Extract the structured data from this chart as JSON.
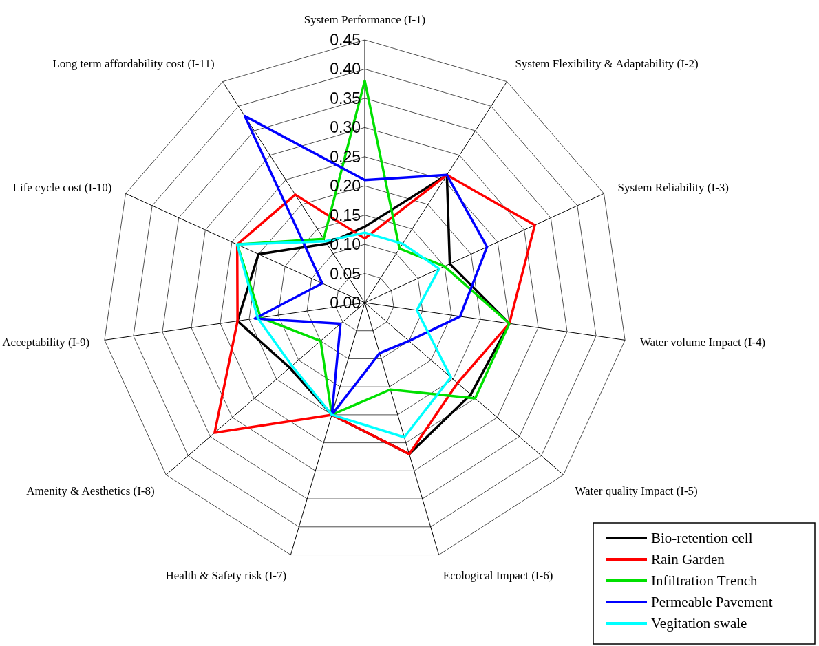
{
  "chart_data": {
    "type": "radar",
    "categories": [
      "System Performance (I-1)",
      "System Flexibility & Adaptability (I-2)",
      "System Reliability (I-3)",
      "Water volume Impact (I-4)",
      "Water quality Impact (I-5)",
      "Ecological Impact (I-6)",
      "Health & Safety risk (I-7)",
      "Amenity & Aesthetics (I-8)",
      "Acceptability (I-9)",
      "Life cycle cost (I-10)",
      "Long term affordability cost (I-11)"
    ],
    "series": [
      {
        "name": "Bio-retention cell",
        "color": "#000000",
        "values": [
          0.13,
          0.26,
          0.16,
          0.25,
          0.24,
          0.27,
          0.2,
          0.17,
          0.22,
          0.2,
          0.12
        ]
      },
      {
        "name": "Rain Garden",
        "color": "#ff0000",
        "values": [
          0.11,
          0.26,
          0.32,
          0.25,
          0.21,
          0.27,
          0.2,
          0.34,
          0.22,
          0.24,
          0.22
        ]
      },
      {
        "name": "Infiltration Trench",
        "color": "#00e000",
        "values": [
          0.38,
          0.11,
          0.15,
          0.25,
          0.25,
          0.155,
          0.2,
          0.1,
          0.18,
          0.24,
          0.13
        ]
      },
      {
        "name": "Permeable Pavement",
        "color": "#0000ff",
        "values": [
          0.21,
          0.26,
          0.23,
          0.165,
          0.1,
          0.09,
          0.2,
          0.055,
          0.19,
          0.08,
          0.38
        ]
      },
      {
        "name": "Vegitation swale",
        "color": "#00ffff",
        "values": [
          0.12,
          0.12,
          0.14,
          0.09,
          0.195,
          0.24,
          0.2,
          0.165,
          0.185,
          0.24,
          0.125
        ]
      }
    ],
    "ylim": [
      0,
      0.45
    ],
    "yticks": [
      {
        "value": 0,
        "label": "0.00"
      },
      {
        "value": 0.05,
        "label": "0.05"
      },
      {
        "value": 0.1,
        "label": "0.10"
      },
      {
        "value": 0.15,
        "label": "0.15"
      },
      {
        "value": 0.2,
        "label": "0.20"
      },
      {
        "value": 0.25,
        "label": "0.25"
      },
      {
        "value": 0.3,
        "label": "0.30"
      },
      {
        "value": 0.35,
        "label": "0.35"
      },
      {
        "value": 0.4,
        "label": "0.40"
      },
      {
        "value": 0.45,
        "label": "0.45"
      }
    ],
    "grid": true,
    "legend": "bottom right",
    "marker": "none",
    "line_style": "solid"
  }
}
